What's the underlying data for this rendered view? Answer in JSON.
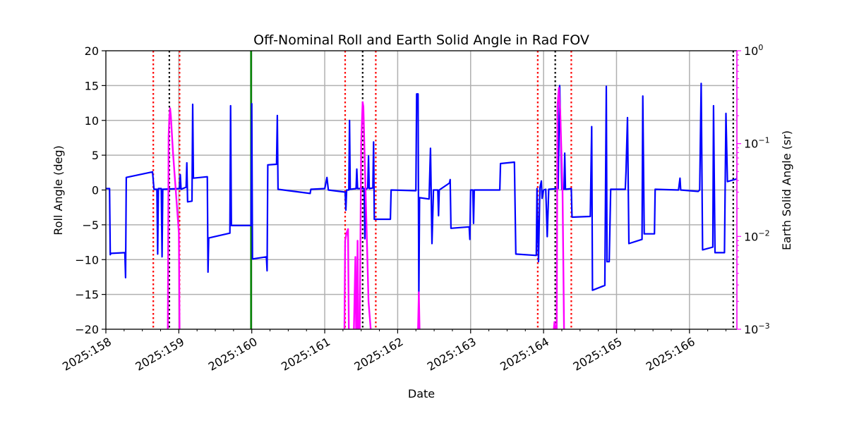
{
  "chart_data": {
    "type": "line",
    "title": "Off-Nominal Roll and Earth Solid Angle in Rad FOV",
    "xlabel": "Date",
    "ylabel": "Roll Angle (deg)",
    "y2label": "Earth Solid Angle (sr)",
    "xlim": [
      158.0,
      166.65
    ],
    "ylim": [
      -20,
      20
    ],
    "y2lim": [
      0.001,
      1.0
    ],
    "y2scale": "log",
    "grid": true,
    "x_ticks": [
      158,
      159,
      160,
      161,
      162,
      163,
      164,
      165,
      166
    ],
    "x_tick_labels": [
      "2025:158",
      "2025:159",
      "2025:160",
      "2025:161",
      "2025:162",
      "2025:163",
      "2025:164",
      "2025:165",
      "2025:166"
    ],
    "y_ticks": [
      -20,
      -15,
      -10,
      -5,
      0,
      5,
      10,
      15,
      20
    ],
    "y_tick_labels": [
      "−20",
      "−15",
      "−10",
      "−5",
      "0",
      "5",
      "10",
      "15",
      "20"
    ],
    "y2_ticks": [
      0.001,
      0.01,
      0.1,
      1.0
    ],
    "y2_tick_labels": [
      {
        "base": "10",
        "exp": "−3"
      },
      {
        "base": "10",
        "exp": "−2"
      },
      {
        "base": "10",
        "exp": "−1"
      },
      {
        "base": "10",
        "exp": "0"
      }
    ],
    "colors": {
      "roll": "#0000ff",
      "earth": "#ff00ff",
      "red_marker": "#ff0000",
      "black_marker": "#000000",
      "green_marker": "#008000",
      "y2_axis": "#ff00ff",
      "grid": "#b0b0b0"
    },
    "red_dotted_lines": [
      158.65,
      159.01,
      161.28,
      161.7,
      163.92,
      164.38
    ],
    "black_dotted_lines": [
      158.87,
      161.52,
      164.16,
      166.6
    ],
    "green_lines": [
      159.99
    ],
    "series": [
      {
        "color": "#0000ff",
        "points": [
          [
            158.0,
            0.2
          ],
          [
            158.05,
            0.2
          ],
          [
            158.06,
            -9.3
          ],
          [
            158.07,
            -9.1
          ],
          [
            158.26,
            -9.0
          ],
          [
            158.27,
            -12.6
          ],
          [
            158.28,
            1.8
          ],
          [
            158.64,
            2.6
          ],
          [
            158.66,
            0.1
          ],
          [
            158.7,
            0.1
          ],
          [
            158.71,
            -9.2
          ],
          [
            158.72,
            0.2
          ],
          [
            158.76,
            0.2
          ],
          [
            158.77,
            -9.6
          ],
          [
            158.78,
            0.1
          ],
          [
            159.01,
            0.2
          ],
          [
            159.02,
            2.2
          ],
          [
            159.03,
            0.1
          ],
          [
            159.1,
            0.4
          ],
          [
            159.11,
            3.9
          ],
          [
            159.12,
            -1.7
          ],
          [
            159.18,
            -1.6
          ],
          [
            159.19,
            12.3
          ],
          [
            159.2,
            1.7
          ],
          [
            159.39,
            1.9
          ],
          [
            159.4,
            -11.8
          ],
          [
            159.41,
            -6.9
          ],
          [
            159.7,
            -6.2
          ],
          [
            159.71,
            12.1
          ],
          [
            159.72,
            -5.1
          ],
          [
            159.99,
            -5.1
          ],
          [
            160.0,
            12.4
          ],
          [
            160.01,
            -9.9
          ],
          [
            160.2,
            -9.6
          ],
          [
            160.21,
            -11.6
          ],
          [
            160.22,
            3.6
          ],
          [
            160.34,
            3.7
          ],
          [
            160.35,
            10.7
          ],
          [
            160.36,
            0.1
          ],
          [
            160.8,
            -0.5
          ],
          [
            160.81,
            0.1
          ],
          [
            161.0,
            0.2
          ],
          [
            161.03,
            1.8
          ],
          [
            161.05,
            0.0
          ],
          [
            161.28,
            -0.3
          ],
          [
            161.29,
            -2.9
          ],
          [
            161.3,
            0.0
          ],
          [
            161.33,
            0.0
          ],
          [
            161.34,
            10.0
          ],
          [
            161.35,
            0.1
          ],
          [
            161.43,
            0.2
          ],
          [
            161.44,
            3.0
          ],
          [
            161.45,
            0.2
          ],
          [
            161.54,
            0.2
          ],
          [
            161.55,
            -7.0
          ],
          [
            161.56,
            0.0
          ],
          [
            161.59,
            0.3
          ],
          [
            161.6,
            4.9
          ],
          [
            161.61,
            0.2
          ],
          [
            161.66,
            0.3
          ],
          [
            161.67,
            6.9
          ],
          [
            161.68,
            -4.2
          ],
          [
            161.9,
            -4.2
          ],
          [
            161.91,
            0.0
          ],
          [
            162.25,
            -0.1
          ],
          [
            162.26,
            13.8
          ],
          [
            162.28,
            13.8
          ],
          [
            162.29,
            -15.8
          ],
          [
            162.3,
            -1.1
          ],
          [
            162.43,
            -1.3
          ],
          [
            162.45,
            6.0
          ],
          [
            162.47,
            -7.7
          ],
          [
            162.49,
            0.0
          ],
          [
            162.55,
            0.0
          ],
          [
            162.56,
            -3.7
          ],
          [
            162.57,
            0.0
          ],
          [
            162.71,
            1.0
          ],
          [
            162.72,
            1.5
          ],
          [
            162.73,
            -5.5
          ],
          [
            162.98,
            -5.3
          ],
          [
            162.99,
            -7.1
          ],
          [
            163.0,
            0.0
          ],
          [
            163.03,
            0.0
          ],
          [
            163.04,
            -4.8
          ],
          [
            163.05,
            0.0
          ],
          [
            163.4,
            0.0
          ],
          [
            163.41,
            3.8
          ],
          [
            163.6,
            4.0
          ],
          [
            163.62,
            -9.2
          ],
          [
            163.9,
            -9.4
          ],
          [
            163.91,
            0.2
          ],
          [
            163.93,
            -10.3
          ],
          [
            163.95,
            0.3
          ],
          [
            163.97,
            1.3
          ],
          [
            163.98,
            -1.2
          ],
          [
            164.0,
            0.0
          ],
          [
            164.03,
            0.1
          ],
          [
            164.05,
            -6.7
          ],
          [
            164.07,
            0.1
          ],
          [
            164.2,
            0.2
          ],
          [
            164.22,
            15.0
          ],
          [
            164.25,
            0.1
          ],
          [
            164.28,
            0.1
          ],
          [
            164.29,
            5.3
          ],
          [
            164.3,
            0.1
          ],
          [
            164.38,
            0.2
          ],
          [
            164.39,
            -3.9
          ],
          [
            164.64,
            -3.8
          ],
          [
            164.66,
            9.1
          ],
          [
            164.67,
            -14.4
          ],
          [
            164.84,
            -13.7
          ],
          [
            164.86,
            14.9
          ],
          [
            164.87,
            -10.3
          ],
          [
            164.9,
            -10.3
          ],
          [
            164.92,
            0.1
          ],
          [
            165.12,
            0.1
          ],
          [
            165.13,
            2.6
          ],
          [
            165.15,
            10.4
          ],
          [
            165.17,
            -7.7
          ],
          [
            165.35,
            -7.1
          ],
          [
            165.36,
            13.5
          ],
          [
            165.38,
            -6.3
          ],
          [
            165.52,
            -6.3
          ],
          [
            165.53,
            0.1
          ],
          [
            165.85,
            0.0
          ],
          [
            165.87,
            1.7
          ],
          [
            165.88,
            0.0
          ],
          [
            166.12,
            -0.2
          ],
          [
            166.14,
            0.0
          ],
          [
            166.16,
            15.3
          ],
          [
            166.18,
            -8.6
          ],
          [
            166.32,
            -8.2
          ],
          [
            166.33,
            12.1
          ],
          [
            166.35,
            -9.0
          ],
          [
            166.48,
            -9.0
          ],
          [
            166.5,
            11.0
          ],
          [
            166.52,
            1.2
          ],
          [
            166.65,
            1.6
          ],
          [
            166.66,
            3.7
          ]
        ]
      },
      {
        "color": "#ff00ff",
        "segments": [
          [
            [
              158.85,
              0.001
            ],
            [
              158.86,
              0.12
            ],
            [
              158.87,
              0.19
            ],
            [
              158.88,
              0.24
            ],
            [
              158.89,
              0.2
            ],
            [
              158.92,
              0.08
            ],
            [
              158.96,
              0.03
            ],
            [
              159.0,
              0.011
            ],
            [
              159.01,
              0.001
            ]
          ],
          [
            [
              161.27,
              0.001
            ],
            [
              161.28,
              0.009
            ],
            [
              161.3,
              0.011
            ],
            [
              161.32,
              0.012
            ],
            [
              161.33,
              0.001
            ]
          ],
          [
            [
              161.4,
              0.001
            ],
            [
              161.42,
              0.006
            ],
            [
              161.43,
              0.001
            ]
          ],
          [
            [
              161.44,
              0.001
            ],
            [
              161.45,
              0.009
            ],
            [
              161.46,
              0.001
            ]
          ],
          [
            [
              161.48,
              0.001
            ],
            [
              161.5,
              0.1
            ],
            [
              161.52,
              0.28
            ],
            [
              161.53,
              0.25
            ],
            [
              161.55,
              0.06
            ],
            [
              161.58,
              0.008
            ],
            [
              161.6,
              0.002
            ],
            [
              161.63,
              0.001
            ]
          ],
          [
            [
              162.28,
              0.001
            ],
            [
              162.29,
              0.0025
            ],
            [
              162.3,
              0.001
            ]
          ],
          [
            [
              164.14,
              0.001
            ],
            [
              164.15,
              0.0012
            ],
            [
              164.16,
              0.001
            ]
          ],
          [
            [
              164.18,
              0.001
            ],
            [
              164.19,
              0.25
            ],
            [
              164.21,
              0.4
            ],
            [
              164.23,
              0.2
            ],
            [
              164.26,
              0.03
            ],
            [
              164.28,
              0.001
            ]
          ]
        ]
      }
    ]
  }
}
